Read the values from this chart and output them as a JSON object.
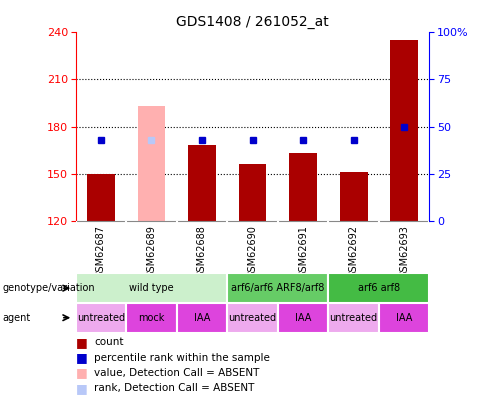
{
  "title": "GDS1408 / 261052_at",
  "samples": [
    "GSM62687",
    "GSM62689",
    "GSM62688",
    "GSM62690",
    "GSM62691",
    "GSM62692",
    "GSM62693"
  ],
  "count_values": [
    150,
    null,
    168,
    156,
    163,
    151,
    235
  ],
  "count_absent_value": 193,
  "count_absent_index": 1,
  "percentile_values": [
    43,
    null,
    43,
    43,
    43,
    43,
    50
  ],
  "percentile_absent_value": 43,
  "percentile_absent_index": 1,
  "ylim_left": [
    120,
    240
  ],
  "ylim_right": [
    0,
    100
  ],
  "left_ticks": [
    120,
    150,
    180,
    210,
    240
  ],
  "right_ticks": [
    0,
    25,
    50,
    75,
    100
  ],
  "right_tick_labels": [
    "0",
    "25",
    "50",
    "75",
    "100%"
  ],
  "bar_color": "#aa0000",
  "absent_bar_color": "#ffb0b0",
  "absent_rank_color": "#b8c8f8",
  "dot_color": "#0000cc",
  "absent_dot_color": "#9090c8",
  "genotype_groups": [
    {
      "label": "wild type",
      "start": 0,
      "end": 3,
      "color": "#ccf0cc"
    },
    {
      "label": "arf6/arf6 ARF8/arf8",
      "start": 3,
      "end": 5,
      "color": "#66cc66"
    },
    {
      "label": "arf6 arf8",
      "start": 5,
      "end": 7,
      "color": "#44bb44"
    }
  ],
  "agent_groups": [
    {
      "label": "untreated",
      "start": 0,
      "end": 1,
      "color": "#eeaaee"
    },
    {
      "label": "mock",
      "start": 1,
      "end": 2,
      "color": "#dd44dd"
    },
    {
      "label": "IAA",
      "start": 2,
      "end": 3,
      "color": "#dd44dd"
    },
    {
      "label": "untreated",
      "start": 3,
      "end": 4,
      "color": "#eeaaee"
    },
    {
      "label": "IAA",
      "start": 4,
      "end": 5,
      "color": "#dd44dd"
    },
    {
      "label": "untreated",
      "start": 5,
      "end": 6,
      "color": "#eeaaee"
    },
    {
      "label": "IAA",
      "start": 6,
      "end": 7,
      "color": "#dd44dd"
    }
  ],
  "legend_items": [
    {
      "label": "count",
      "color": "#aa0000"
    },
    {
      "label": "percentile rank within the sample",
      "color": "#0000cc"
    },
    {
      "label": "value, Detection Call = ABSENT",
      "color": "#ffb0b0"
    },
    {
      "label": "rank, Detection Call = ABSENT",
      "color": "#b8c8f8"
    }
  ],
  "sample_col_bg": "#c8c8c8",
  "fig_bg": "#ffffff"
}
